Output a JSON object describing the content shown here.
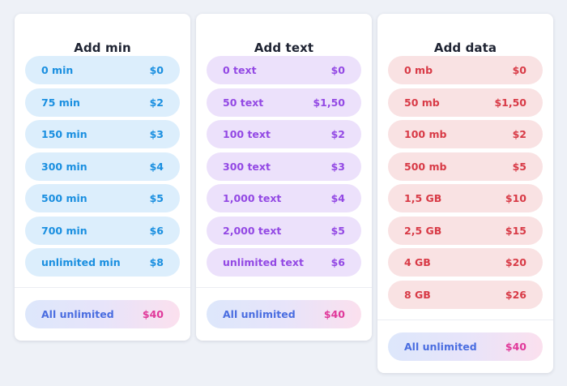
{
  "cards": [
    {
      "title": "Add min",
      "options": [
        {
          "label": "0 min",
          "price": "$0"
        },
        {
          "label": "75 min",
          "price": "$2"
        },
        {
          "label": "150 min",
          "price": "$3"
        },
        {
          "label": "300 min",
          "price": "$4"
        },
        {
          "label": "500 min",
          "price": "$5"
        },
        {
          "label": "700 min",
          "price": "$6"
        },
        {
          "label": "unlimited min",
          "price": "$8"
        }
      ],
      "all_unlimited": {
        "label": "All unlimited",
        "price": "$40"
      }
    },
    {
      "title": "Add text",
      "options": [
        {
          "label": "0 text",
          "price": "$0"
        },
        {
          "label": "50 text",
          "price": "$1,50"
        },
        {
          "label": "100 text",
          "price": "$2"
        },
        {
          "label": "300 text",
          "price": "$3"
        },
        {
          "label": "1,000 text",
          "price": "$4"
        },
        {
          "label": "2,000 text",
          "price": "$5"
        },
        {
          "label": "unlimited text",
          "price": "$6"
        }
      ],
      "all_unlimited": {
        "label": "All unlimited",
        "price": "$40"
      }
    },
    {
      "title": "Add data",
      "options": [
        {
          "label": "0 mb",
          "price": "$0"
        },
        {
          "label": "50 mb",
          "price": "$1,50"
        },
        {
          "label": "100 mb",
          "price": "$2"
        },
        {
          "label": "500 mb",
          "price": "$5"
        },
        {
          "label": "1,5 GB",
          "price": "$10"
        },
        {
          "label": "2,5 GB",
          "price": "$15"
        },
        {
          "label": "4 GB",
          "price": "$20"
        },
        {
          "label": "8 GB",
          "price": "$26"
        }
      ],
      "all_unlimited": {
        "label": "All unlimited",
        "price": "$40"
      }
    }
  ],
  "colors": {
    "minutes": "#1a8fe0",
    "text": "#9349e4",
    "data": "#d83a46",
    "all_unlimited_left": "#4a6de0",
    "all_unlimited_right": "#e0389a"
  }
}
